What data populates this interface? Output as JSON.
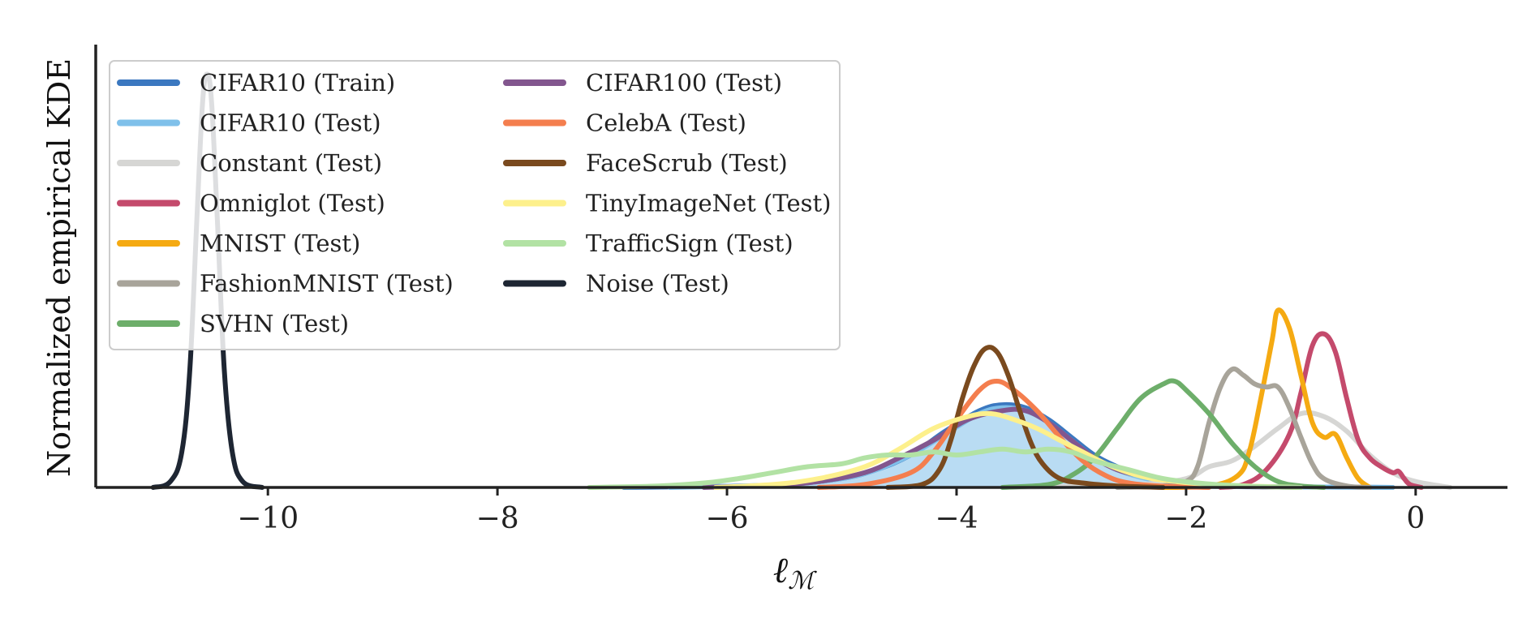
{
  "chart_data": {
    "type": "line",
    "title": "",
    "xlabel": "ℓ",
    "xlabel_sub": "ℳ",
    "ylabel": "Normalized empirical KDE",
    "xlim": [
      -11.5,
      0.8
    ],
    "ylim": [
      0,
      1.5
    ],
    "grid": false,
    "legend_position": "upper-left",
    "legend_columns": 2,
    "x_ticks": [
      {
        "value": -10,
        "label": "−10"
      },
      {
        "value": -8,
        "label": "−8"
      },
      {
        "value": -6,
        "label": "−6"
      },
      {
        "value": -4,
        "label": "−4"
      },
      {
        "value": -2,
        "label": "−2"
      },
      {
        "value": 0,
        "label": "0"
      }
    ],
    "series": [
      {
        "name": "CIFAR10 (Train)",
        "color": "#3b78c0",
        "fill": false,
        "points": [
          [
            -6.9,
            0
          ],
          [
            -6,
            0.004
          ],
          [
            -5.5,
            0.01
          ],
          [
            -5,
            0.03
          ],
          [
            -4.7,
            0.06
          ],
          [
            -4.4,
            0.11
          ],
          [
            -4.1,
            0.19
          ],
          [
            -3.8,
            0.26
          ],
          [
            -3.6,
            0.28
          ],
          [
            -3.4,
            0.27
          ],
          [
            -3.2,
            0.23
          ],
          [
            -3,
            0.17
          ],
          [
            -2.8,
            0.11
          ],
          [
            -2.6,
            0.07
          ],
          [
            -2.4,
            0.04
          ],
          [
            -2.1,
            0.015
          ],
          [
            -1.8,
            0.005
          ],
          [
            -1.2,
            0.002
          ],
          [
            -0.6,
            0.001
          ],
          [
            -0.2,
            0
          ]
        ]
      },
      {
        "name": "CIFAR10 (Test)",
        "color": "#7fc0ea",
        "fill": true,
        "points": [
          [
            -6.5,
            0
          ],
          [
            -6,
            0.004
          ],
          [
            -5.5,
            0.01
          ],
          [
            -5,
            0.03
          ],
          [
            -4.7,
            0.06
          ],
          [
            -4.4,
            0.11
          ],
          [
            -4.1,
            0.18
          ],
          [
            -3.8,
            0.25
          ],
          [
            -3.6,
            0.27
          ],
          [
            -3.4,
            0.26
          ],
          [
            -3.2,
            0.22
          ],
          [
            -3,
            0.16
          ],
          [
            -2.8,
            0.1
          ],
          [
            -2.6,
            0.06
          ],
          [
            -2.4,
            0.035
          ],
          [
            -2.1,
            0.012
          ],
          [
            -1.8,
            0.004
          ],
          [
            -1.2,
            0.002
          ],
          [
            -0.6,
            0.001
          ],
          [
            -0.2,
            0
          ]
        ]
      },
      {
        "name": "Constant (Test)",
        "color": "#d6d6d4",
        "fill": false,
        "points": [
          [
            -3.6,
            0
          ],
          [
            -3.2,
            0.002
          ],
          [
            -2.8,
            0.006
          ],
          [
            -2.4,
            0.01
          ],
          [
            -2,
            0.03
          ],
          [
            -1.8,
            0.07
          ],
          [
            -1.6,
            0.09
          ],
          [
            -1.4,
            0.14
          ],
          [
            -1.2,
            0.2
          ],
          [
            -1,
            0.25
          ],
          [
            -0.8,
            0.24
          ],
          [
            -0.6,
            0.19
          ],
          [
            -0.4,
            0.11
          ],
          [
            -0.2,
            0.05
          ],
          [
            0,
            0.02
          ],
          [
            0.3,
            0
          ]
        ]
      },
      {
        "name": "Omniglot (Test)",
        "color": "#c44a6c",
        "fill": false,
        "points": [
          [
            -1.7,
            0
          ],
          [
            -1.5,
            0.01
          ],
          [
            -1.3,
            0.06
          ],
          [
            -1.1,
            0.18
          ],
          [
            -1,
            0.32
          ],
          [
            -0.9,
            0.48
          ],
          [
            -0.8,
            0.52
          ],
          [
            -0.7,
            0.46
          ],
          [
            -0.6,
            0.3
          ],
          [
            -0.5,
            0.16
          ],
          [
            -0.4,
            0.1
          ],
          [
            -0.3,
            0.07
          ],
          [
            -0.2,
            0.05
          ],
          [
            -0.15,
            0.055
          ],
          [
            -0.1,
            0.03
          ],
          [
            -0.05,
            0.01
          ],
          [
            0.05,
            0
          ]
        ]
      },
      {
        "name": "MNIST (Test)",
        "color": "#f5aa12",
        "fill": false,
        "points": [
          [
            -2.2,
            0
          ],
          [
            -1.8,
            0.005
          ],
          [
            -1.55,
            0.04
          ],
          [
            -1.45,
            0.12
          ],
          [
            -1.35,
            0.3
          ],
          [
            -1.25,
            0.5
          ],
          [
            -1.2,
            0.6
          ],
          [
            -1.1,
            0.54
          ],
          [
            -1,
            0.38
          ],
          [
            -0.9,
            0.22
          ],
          [
            -0.8,
            0.17
          ],
          [
            -0.7,
            0.18
          ],
          [
            -0.6,
            0.1
          ],
          [
            -0.5,
            0.03
          ],
          [
            -0.4,
            0
          ]
        ]
      },
      {
        "name": "FashionMNIST (Test)",
        "color": "#a8a49a",
        "fill": false,
        "points": [
          [
            -2.6,
            0
          ],
          [
            -2.2,
            0.005
          ],
          [
            -2,
            0.02
          ],
          [
            -1.9,
            0.07
          ],
          [
            -1.8,
            0.22
          ],
          [
            -1.7,
            0.34
          ],
          [
            -1.6,
            0.4
          ],
          [
            -1.5,
            0.38
          ],
          [
            -1.4,
            0.35
          ],
          [
            -1.3,
            0.34
          ],
          [
            -1.2,
            0.34
          ],
          [
            -1.1,
            0.27
          ],
          [
            -1,
            0.17
          ],
          [
            -0.9,
            0.08
          ],
          [
            -0.8,
            0.03
          ],
          [
            -0.6,
            0.005
          ],
          [
            -0.4,
            0
          ]
        ]
      },
      {
        "name": "SVHN (Test)",
        "color": "#6dae6a",
        "fill": false,
        "points": [
          [
            -3.6,
            0
          ],
          [
            -3.2,
            0.01
          ],
          [
            -3,
            0.04
          ],
          [
            -2.8,
            0.1
          ],
          [
            -2.6,
            0.2
          ],
          [
            -2.4,
            0.3
          ],
          [
            -2.2,
            0.35
          ],
          [
            -2.1,
            0.36
          ],
          [
            -2,
            0.33
          ],
          [
            -1.8,
            0.25
          ],
          [
            -1.6,
            0.15
          ],
          [
            -1.4,
            0.07
          ],
          [
            -1.2,
            0.02
          ],
          [
            -1,
            0.005
          ],
          [
            -0.8,
            0
          ]
        ]
      },
      {
        "name": "CIFAR100 (Test)",
        "color": "#82568e",
        "fill": false,
        "points": [
          [
            -6.2,
            0
          ],
          [
            -5.6,
            0.008
          ],
          [
            -5.2,
            0.02
          ],
          [
            -4.8,
            0.05
          ],
          [
            -4.5,
            0.1
          ],
          [
            -4.2,
            0.16
          ],
          [
            -3.9,
            0.23
          ],
          [
            -3.6,
            0.26
          ],
          [
            -3.4,
            0.26
          ],
          [
            -3.2,
            0.22
          ],
          [
            -3,
            0.16
          ],
          [
            -2.8,
            0.1
          ],
          [
            -2.6,
            0.06
          ],
          [
            -2.4,
            0.04
          ],
          [
            -2.2,
            0.025
          ],
          [
            -2,
            0.012
          ],
          [
            -1.6,
            0.004
          ],
          [
            -1,
            0
          ]
        ]
      },
      {
        "name": "CelebA (Test)",
        "color": "#f47e4e",
        "fill": false,
        "points": [
          [
            -5.2,
            0
          ],
          [
            -4.8,
            0.01
          ],
          [
            -4.4,
            0.05
          ],
          [
            -4.2,
            0.12
          ],
          [
            -4,
            0.23
          ],
          [
            -3.8,
            0.33
          ],
          [
            -3.65,
            0.36
          ],
          [
            -3.5,
            0.33
          ],
          [
            -3.3,
            0.26
          ],
          [
            -3.1,
            0.17
          ],
          [
            -2.9,
            0.09
          ],
          [
            -2.7,
            0.04
          ],
          [
            -2.5,
            0.015
          ],
          [
            -2.2,
            0.004
          ],
          [
            -1.8,
            0
          ]
        ]
      },
      {
        "name": "FaceScrub (Test)",
        "color": "#7a4a1e",
        "fill": false,
        "points": [
          [
            -4.6,
            0
          ],
          [
            -4.3,
            0.01
          ],
          [
            -4.15,
            0.06
          ],
          [
            -4.05,
            0.16
          ],
          [
            -3.95,
            0.3
          ],
          [
            -3.85,
            0.41
          ],
          [
            -3.75,
            0.47
          ],
          [
            -3.65,
            0.46
          ],
          [
            -3.55,
            0.38
          ],
          [
            -3.45,
            0.26
          ],
          [
            -3.35,
            0.15
          ],
          [
            -3.25,
            0.08
          ],
          [
            -3.1,
            0.03
          ],
          [
            -2.9,
            0.015
          ],
          [
            -2.6,
            0.005
          ],
          [
            -2.2,
            0
          ]
        ]
      },
      {
        "name": "TinyImageNet (Test)",
        "color": "#fdf08c",
        "fill": false,
        "points": [
          [
            -6.1,
            0
          ],
          [
            -5.6,
            0.01
          ],
          [
            -5.2,
            0.03
          ],
          [
            -4.8,
            0.07
          ],
          [
            -4.5,
            0.13
          ],
          [
            -4.2,
            0.2
          ],
          [
            -3.9,
            0.24
          ],
          [
            -3.7,
            0.25
          ],
          [
            -3.5,
            0.23
          ],
          [
            -3.3,
            0.2
          ],
          [
            -3.1,
            0.16
          ],
          [
            -2.9,
            0.12
          ],
          [
            -2.7,
            0.08
          ],
          [
            -2.5,
            0.05
          ],
          [
            -2.3,
            0.03
          ],
          [
            -2.1,
            0.02
          ],
          [
            -1.8,
            0.01
          ],
          [
            -1.4,
            0.004
          ],
          [
            -1,
            0
          ]
        ]
      },
      {
        "name": "TrafficSign (Test)",
        "color": "#b2e2a4",
        "fill": false,
        "points": [
          [
            -7.2,
            0
          ],
          [
            -6.6,
            0.005
          ],
          [
            -6.2,
            0.015
          ],
          [
            -5.9,
            0.03
          ],
          [
            -5.6,
            0.05
          ],
          [
            -5.3,
            0.07
          ],
          [
            -5,
            0.08
          ],
          [
            -4.8,
            0.1
          ],
          [
            -4.6,
            0.11
          ],
          [
            -4.4,
            0.11
          ],
          [
            -4.2,
            0.12
          ],
          [
            -4,
            0.11
          ],
          [
            -3.8,
            0.12
          ],
          [
            -3.6,
            0.13
          ],
          [
            -3.4,
            0.12
          ],
          [
            -3.2,
            0.13
          ],
          [
            -3,
            0.12
          ],
          [
            -2.8,
            0.09
          ],
          [
            -2.5,
            0.06
          ],
          [
            -2.2,
            0.03
          ],
          [
            -1.9,
            0.015
          ],
          [
            -1.5,
            0.005
          ],
          [
            -1,
            0
          ]
        ]
      },
      {
        "name": "Noise (Test)",
        "color": "#1e2633",
        "fill": false,
        "points": [
          [
            -11,
            0
          ],
          [
            -10.85,
            0.02
          ],
          [
            -10.75,
            0.12
          ],
          [
            -10.68,
            0.4
          ],
          [
            -10.62,
            0.9
          ],
          [
            -10.57,
            1.3
          ],
          [
            -10.53,
            1.4
          ],
          [
            -10.49,
            1.3
          ],
          [
            -10.44,
            0.9
          ],
          [
            -10.38,
            0.4
          ],
          [
            -10.31,
            0.12
          ],
          [
            -10.22,
            0.02
          ],
          [
            -10.05,
            0
          ]
        ]
      }
    ]
  }
}
